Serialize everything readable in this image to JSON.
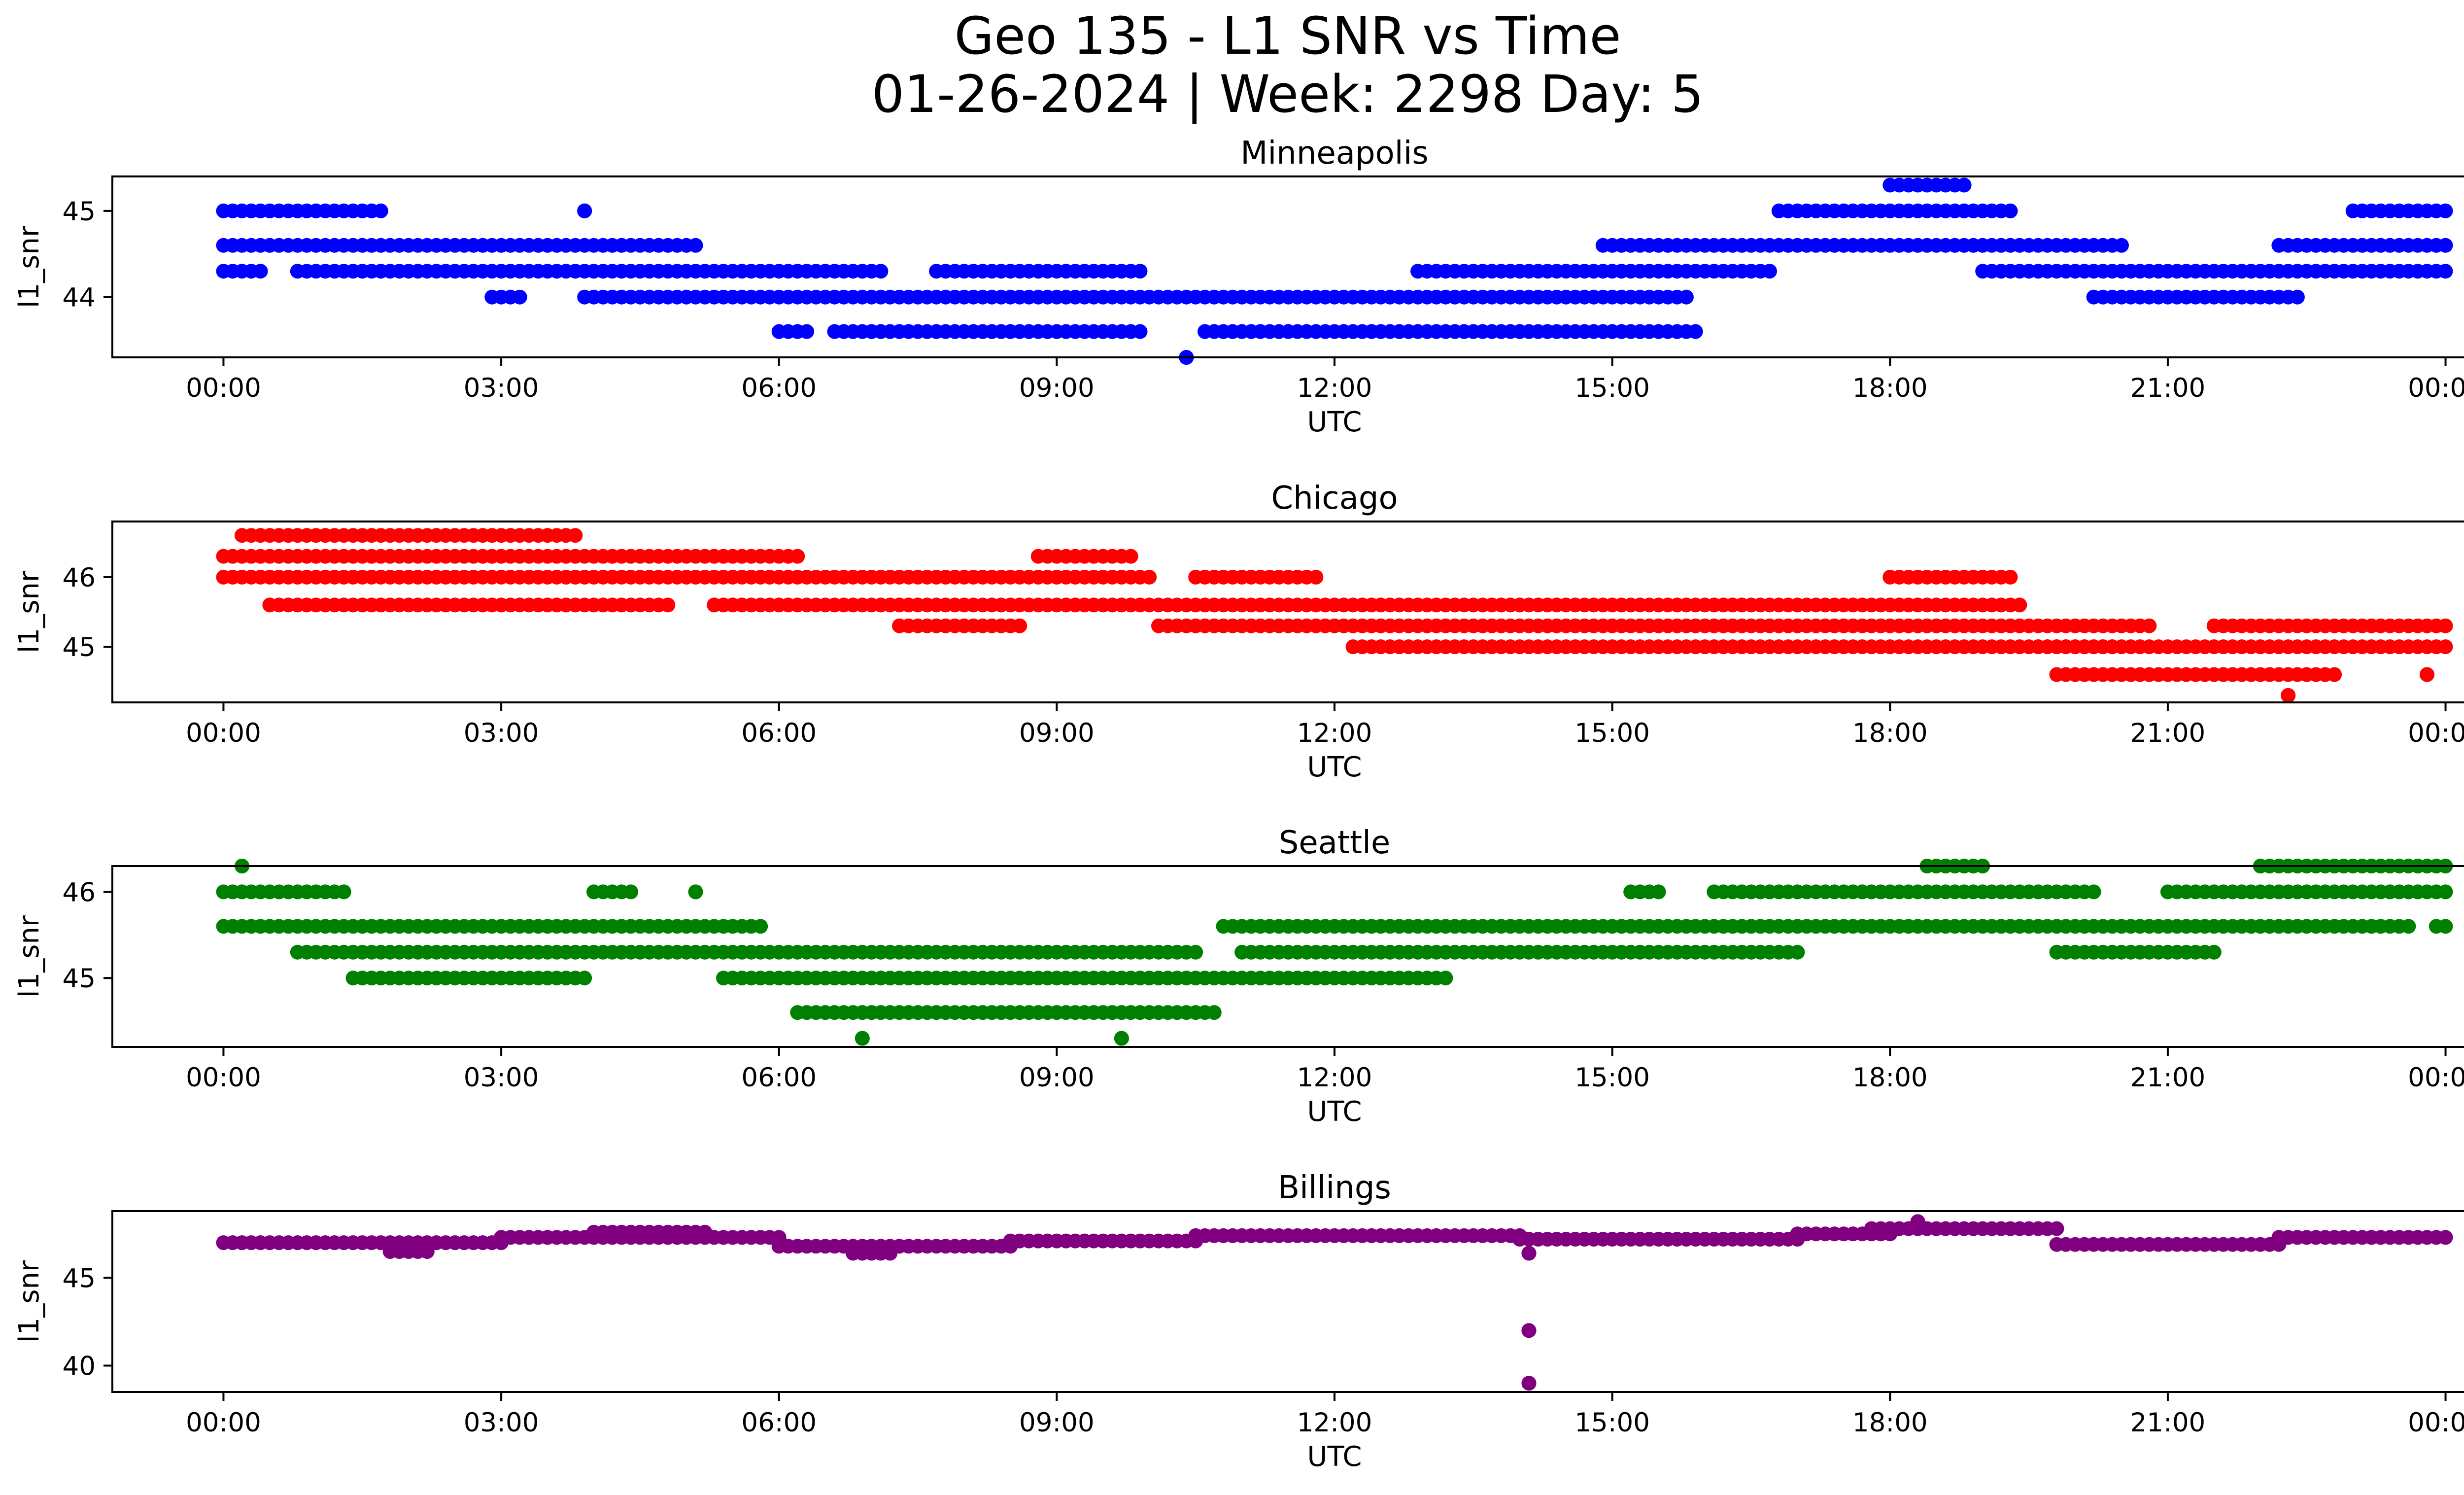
{
  "figure": {
    "title_line1": "Geo 135 - L1 SNR vs Time",
    "title_line2": "01-26-2024 | Week: 2298 Day: 5"
  },
  "chart_data": [
    {
      "type": "scatter",
      "title": "Minneapolis",
      "xlabel": "UTC",
      "ylabel": "l1_snr",
      "color": "#0000ff",
      "xlim": [
        -1.2,
        25.2
      ],
      "ylim": [
        43.3,
        45.4
      ],
      "xticks": [
        "00:00",
        "03:00",
        "06:00",
        "09:00",
        "12:00",
        "15:00",
        "18:00",
        "21:00",
        "00:00"
      ],
      "yticks": [
        44,
        45
      ],
      "series": [
        {
          "values": [
            {
              "x": [
                0.0,
                1.7
              ],
              "y": 45.0
            },
            {
              "x": [
                0.0,
                5.1
              ],
              "y": 44.6
            },
            {
              "x": [
                0.0,
                0.4
              ],
              "y": 44.3
            },
            {
              "x": [
                0.8,
                7.1
              ],
              "y": 44.3
            },
            {
              "x": [
                2.9,
                3.2
              ],
              "y": 44.0
            },
            {
              "x": [
                3.9,
                3.9
              ],
              "y": 45.0
            },
            {
              "x": [
                3.9,
                15.8
              ],
              "y": 44.0
            },
            {
              "x": [
                6.6,
                9.9
              ],
              "y": 43.6
            },
            {
              "x": [
                6.0,
                6.3
              ],
              "y": 43.6
            },
            {
              "x": [
                7.7,
                9.9
              ],
              "y": 44.3
            },
            {
              "x": [
                10.4,
                10.4
              ],
              "y": 43.3
            },
            {
              "x": [
                10.6,
                15.9
              ],
              "y": 43.6
            },
            {
              "x": [
                12.9,
                16.7
              ],
              "y": 44.3
            },
            {
              "x": [
                14.9,
                20.5
              ],
              "y": 44.6
            },
            {
              "x": [
                16.8,
                19.3
              ],
              "y": 45.0
            },
            {
              "x": [
                18.0,
                18.8
              ],
              "y": 45.3
            },
            {
              "x": [
                19.0,
                24.0
              ],
              "y": 44.3
            },
            {
              "x": [
                20.2,
                22.4
              ],
              "y": 44.0
            },
            {
              "x": [
                22.2,
                24.0
              ],
              "y": 44.6
            },
            {
              "x": [
                23.0,
                24.0
              ],
              "y": 45.0
            }
          ]
        }
      ]
    },
    {
      "type": "scatter",
      "title": "Chicago",
      "xlabel": "UTC",
      "ylabel": "l1_snr",
      "color": "#ff0000",
      "xlim": [
        -1.2,
        25.2
      ],
      "ylim": [
        44.2,
        46.8
      ],
      "xticks": [
        "00:00",
        "03:00",
        "06:00",
        "09:00",
        "12:00",
        "15:00",
        "18:00",
        "21:00",
        "00:00"
      ],
      "yticks": [
        45,
        46
      ],
      "series": [
        {
          "values": [
            {
              "x": [
                0.0,
                10.0
              ],
              "y": 46.0
            },
            {
              "x": [
                0.0,
                6.2
              ],
              "y": 46.3
            },
            {
              "x": [
                0.2,
                3.8
              ],
              "y": 46.6
            },
            {
              "x": [
                0.5,
                4.8
              ],
              "y": 45.6
            },
            {
              "x": [
                5.3,
                14.0
              ],
              "y": 45.6
            },
            {
              "x": [
                7.3,
                8.6
              ],
              "y": 45.3
            },
            {
              "x": [
                8.8,
                9.8
              ],
              "y": 46.3
            },
            {
              "x": [
                10.1,
                20.8
              ],
              "y": 45.3
            },
            {
              "x": [
                10.5,
                11.8
              ],
              "y": 46.0
            },
            {
              "x": [
                12.2,
                20.4
              ],
              "y": 45.0
            },
            {
              "x": [
                14.0,
                19.4
              ],
              "y": 45.6
            },
            {
              "x": [
                18.0,
                19.3
              ],
              "y": 46.0
            },
            {
              "x": [
                19.6,
                24.0
              ],
              "y": 45.0
            },
            {
              "x": [
                19.8,
                22.8
              ],
              "y": 44.6
            },
            {
              "x": [
                21.5,
                24.0
              ],
              "y": 45.3
            },
            {
              "x": [
                22.3,
                22.3
              ],
              "y": 44.3
            },
            {
              "x": [
                23.8,
                23.8
              ],
              "y": 44.6
            }
          ]
        }
      ]
    },
    {
      "type": "scatter",
      "title": "Seattle",
      "xlabel": "UTC",
      "ylabel": "l1_snr",
      "color": "#008000",
      "xlim": [
        -1.2,
        25.2
      ],
      "ylim": [
        44.2,
        46.3
      ],
      "xticks": [
        "00:00",
        "03:00",
        "06:00",
        "09:00",
        "12:00",
        "15:00",
        "18:00",
        "21:00",
        "00:00"
      ],
      "yticks": [
        45,
        46
      ],
      "series": [
        {
          "values": [
            {
              "x": [
                0.0,
                1.3
              ],
              "y": 46.0
            },
            {
              "x": [
                0.2,
                0.2
              ],
              "y": 46.3
            },
            {
              "x": [
                0.0,
                5.8
              ],
              "y": 45.6
            },
            {
              "x": [
                0.8,
                10.5
              ],
              "y": 45.3
            },
            {
              "x": [
                1.4,
                3.9
              ],
              "y": 45.0
            },
            {
              "x": [
                4.0,
                4.4
              ],
              "y": 46.0
            },
            {
              "x": [
                5.1,
                5.1
              ],
              "y": 46.0
            },
            {
              "x": [
                5.4,
                13.2
              ],
              "y": 45.0
            },
            {
              "x": [
                6.2,
                10.7
              ],
              "y": 44.6
            },
            {
              "x": [
                6.9,
                6.9
              ],
              "y": 44.3
            },
            {
              "x": [
                9.7,
                9.7
              ],
              "y": 44.3
            },
            {
              "x": [
                10.8,
                23.6
              ],
              "y": 45.6
            },
            {
              "x": [
                11.0,
                17.0
              ],
              "y": 45.3
            },
            {
              "x": [
                15.2,
                15.5
              ],
              "y": 46.0
            },
            {
              "x": [
                16.1,
                20.2
              ],
              "y": 46.0
            },
            {
              "x": [
                18.4,
                19.0
              ],
              "y": 46.3
            },
            {
              "x": [
                19.8,
                21.5
              ],
              "y": 45.3
            },
            {
              "x": [
                21.0,
                24.0
              ],
              "y": 46.0
            },
            {
              "x": [
                22.0,
                24.0
              ],
              "y": 46.3
            },
            {
              "x": [
                23.9,
                24.0
              ],
              "y": 45.6
            }
          ]
        }
      ]
    },
    {
      "type": "scatter",
      "title": "Billings",
      "xlabel": "UTC",
      "ylabel": "l1_snr",
      "color": "#800080",
      "xlim": [
        -1.2,
        25.2
      ],
      "ylim": [
        38.5,
        48.8
      ],
      "xticks": [
        "00:00",
        "03:00",
        "06:00",
        "09:00",
        "12:00",
        "15:00",
        "18:00",
        "21:00",
        "00:00"
      ],
      "yticks": [
        40,
        45
      ],
      "series": [
        {
          "values": [
            {
              "x": [
                0.0,
                3.0
              ],
              "y": 47.0
            },
            {
              "x": [
                1.8,
                2.2
              ],
              "y": 46.5
            },
            {
              "x": [
                3.0,
                6.0
              ],
              "y": 47.3
            },
            {
              "x": [
                4.0,
                5.2
              ],
              "y": 47.6
            },
            {
              "x": [
                6.0,
                8.5
              ],
              "y": 46.8
            },
            {
              "x": [
                6.8,
                7.2
              ],
              "y": 46.4
            },
            {
              "x": [
                8.5,
                10.5
              ],
              "y": 47.1
            },
            {
              "x": [
                10.5,
                14.0
              ],
              "y": 47.4
            },
            {
              "x": [
                14.0,
                17.0
              ],
              "y": 47.2
            },
            {
              "x": [
                14.1,
                14.1
              ],
              "y": 46.4
            },
            {
              "x": [
                14.1,
                14.1
              ],
              "y": 42.0
            },
            {
              "x": [
                14.1,
                14.1
              ],
              "y": 39.0
            },
            {
              "x": [
                17.0,
                18.0
              ],
              "y": 47.5
            },
            {
              "x": [
                17.8,
                19.8
              ],
              "y": 47.8
            },
            {
              "x": [
                18.3,
                18.3
              ],
              "y": 48.2
            },
            {
              "x": [
                19.8,
                22.2
              ],
              "y": 46.9
            },
            {
              "x": [
                22.2,
                24.0
              ],
              "y": 47.3
            }
          ]
        }
      ]
    }
  ]
}
